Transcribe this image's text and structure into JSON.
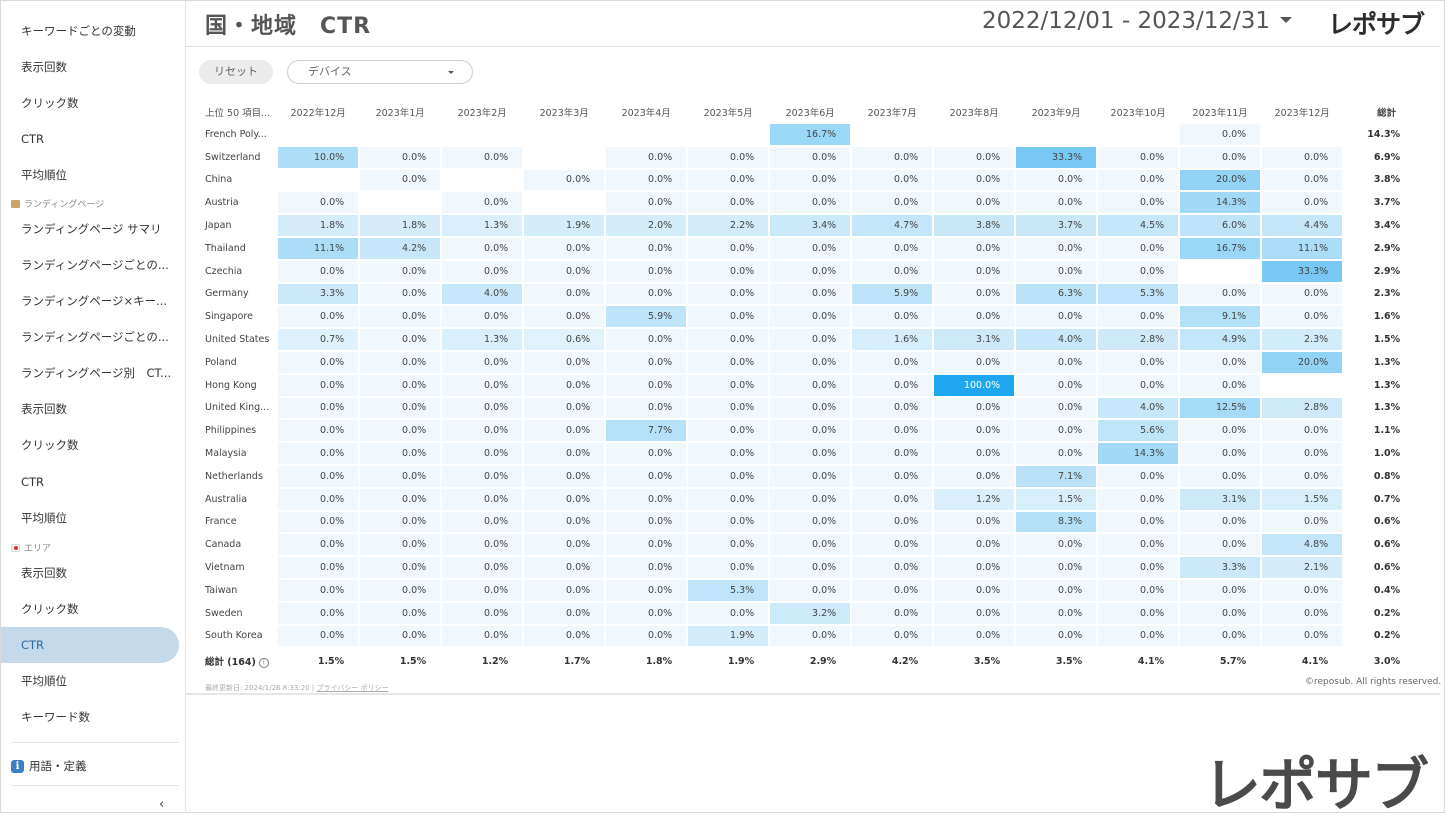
{
  "header": {
    "title": "国・地域　CTR",
    "date_range": "2022/12/01 - 2023/12/31",
    "logo": "レポサブ"
  },
  "sidebar": {
    "items_top": [
      {
        "label": "キーワードごとの変動"
      },
      {
        "label": "表示回数"
      },
      {
        "label": "クリック数"
      },
      {
        "label": "CTR"
      },
      {
        "label": "平均順位"
      }
    ],
    "section_landing": "ランディングページ",
    "items_landing": [
      {
        "label": "ランディングページ サマリ"
      },
      {
        "label": "ランディングページごとの..."
      },
      {
        "label": "ランディングページ×キー..."
      },
      {
        "label": "ランディングページごとの..."
      },
      {
        "label": "ランディングページ別　CT..."
      },
      {
        "label": "表示回数"
      },
      {
        "label": "クリック数"
      },
      {
        "label": "CTR"
      },
      {
        "label": "平均順位"
      }
    ],
    "section_area": "エリア",
    "items_area": [
      {
        "label": "表示回数"
      },
      {
        "label": "クリック数"
      },
      {
        "label": "CTR",
        "active": true
      },
      {
        "label": "平均順位"
      },
      {
        "label": "キーワード数"
      }
    ],
    "glossary": "用語・定義",
    "collapse_icon": "chevron-left-icon"
  },
  "controls": {
    "reset_label": "リセット",
    "device_placeholder": "デバイス"
  },
  "table": {
    "corner_header": "上位 50 項目...",
    "columns": [
      "2022年12月",
      "2023年1月",
      "2023年2月",
      "2023年3月",
      "2023年4月",
      "2023年5月",
      "2023年6月",
      "2023年7月",
      "2023年8月",
      "2023年9月",
      "2023年10月",
      "2023年11月",
      "2023年12月"
    ],
    "total_header": "総計",
    "rows": [
      {
        "name": "French Poly...",
        "cells": [
          "",
          "",
          "",
          "",
          "",
          "",
          "16.7%",
          "",
          "",
          "",
          "",
          "0.0%",
          ""
        ],
        "total": "14.3%"
      },
      {
        "name": "Switzerland",
        "cells": [
          "10.0%",
          "0.0%",
          "0.0%",
          "",
          "0.0%",
          "0.0%",
          "0.0%",
          "0.0%",
          "0.0%",
          "33.3%",
          "0.0%",
          "0.0%",
          "0.0%"
        ],
        "total": "6.9%"
      },
      {
        "name": "China",
        "cells": [
          "",
          "0.0%",
          "",
          "0.0%",
          "0.0%",
          "0.0%",
          "0.0%",
          "0.0%",
          "0.0%",
          "0.0%",
          "0.0%",
          "20.0%",
          "0.0%"
        ],
        "total": "3.8%"
      },
      {
        "name": "Austria",
        "cells": [
          "0.0%",
          "",
          "0.0%",
          "",
          "0.0%",
          "0.0%",
          "0.0%",
          "0.0%",
          "0.0%",
          "0.0%",
          "0.0%",
          "14.3%",
          "0.0%"
        ],
        "total": "3.7%"
      },
      {
        "name": "Japan",
        "cells": [
          "1.8%",
          "1.8%",
          "1.3%",
          "1.9%",
          "2.0%",
          "2.2%",
          "3.4%",
          "4.7%",
          "3.8%",
          "3.7%",
          "4.5%",
          "6.0%",
          "4.4%"
        ],
        "total": "3.4%"
      },
      {
        "name": "Thailand",
        "cells": [
          "11.1%",
          "4.2%",
          "0.0%",
          "0.0%",
          "0.0%",
          "0.0%",
          "0.0%",
          "0.0%",
          "0.0%",
          "0.0%",
          "0.0%",
          "16.7%",
          "11.1%"
        ],
        "total": "2.9%"
      },
      {
        "name": "Czechia",
        "cells": [
          "0.0%",
          "0.0%",
          "0.0%",
          "0.0%",
          "0.0%",
          "0.0%",
          "0.0%",
          "0.0%",
          "0.0%",
          "0.0%",
          "0.0%",
          "",
          "33.3%"
        ],
        "total": "2.9%"
      },
      {
        "name": "Germany",
        "cells": [
          "3.3%",
          "0.0%",
          "4.0%",
          "0.0%",
          "0.0%",
          "0.0%",
          "0.0%",
          "5.9%",
          "0.0%",
          "6.3%",
          "5.3%",
          "0.0%",
          "0.0%"
        ],
        "total": "2.3%"
      },
      {
        "name": "Singapore",
        "cells": [
          "0.0%",
          "0.0%",
          "0.0%",
          "0.0%",
          "5.9%",
          "0.0%",
          "0.0%",
          "0.0%",
          "0.0%",
          "0.0%",
          "0.0%",
          "9.1%",
          "0.0%"
        ],
        "total": "1.6%"
      },
      {
        "name": "United States",
        "cells": [
          "0.7%",
          "0.0%",
          "1.3%",
          "0.6%",
          "0.0%",
          "0.0%",
          "0.0%",
          "1.6%",
          "3.1%",
          "4.0%",
          "2.8%",
          "4.9%",
          "2.3%"
        ],
        "total": "1.5%"
      },
      {
        "name": "Poland",
        "cells": [
          "0.0%",
          "0.0%",
          "0.0%",
          "0.0%",
          "0.0%",
          "0.0%",
          "0.0%",
          "0.0%",
          "0.0%",
          "0.0%",
          "0.0%",
          "0.0%",
          "20.0%"
        ],
        "total": "1.3%"
      },
      {
        "name": "Hong Kong",
        "cells": [
          "0.0%",
          "0.0%",
          "0.0%",
          "0.0%",
          "0.0%",
          "0.0%",
          "0.0%",
          "0.0%",
          "100.0%",
          "0.0%",
          "0.0%",
          "0.0%",
          ""
        ],
        "total": "1.3%"
      },
      {
        "name": "United King...",
        "cells": [
          "0.0%",
          "0.0%",
          "0.0%",
          "0.0%",
          "0.0%",
          "0.0%",
          "0.0%",
          "0.0%",
          "0.0%",
          "0.0%",
          "4.0%",
          "12.5%",
          "2.8%"
        ],
        "total": "1.3%"
      },
      {
        "name": "Philippines",
        "cells": [
          "0.0%",
          "0.0%",
          "0.0%",
          "0.0%",
          "7.7%",
          "0.0%",
          "0.0%",
          "0.0%",
          "0.0%",
          "0.0%",
          "5.6%",
          "0.0%",
          "0.0%"
        ],
        "total": "1.1%"
      },
      {
        "name": "Malaysia",
        "cells": [
          "0.0%",
          "0.0%",
          "0.0%",
          "0.0%",
          "0.0%",
          "0.0%",
          "0.0%",
          "0.0%",
          "0.0%",
          "0.0%",
          "14.3%",
          "0.0%",
          "0.0%"
        ],
        "total": "1.0%"
      },
      {
        "name": "Netherlands",
        "cells": [
          "0.0%",
          "0.0%",
          "0.0%",
          "0.0%",
          "0.0%",
          "0.0%",
          "0.0%",
          "0.0%",
          "0.0%",
          "7.1%",
          "0.0%",
          "0.0%",
          "0.0%"
        ],
        "total": "0.8%"
      },
      {
        "name": "Australia",
        "cells": [
          "0.0%",
          "0.0%",
          "0.0%",
          "0.0%",
          "0.0%",
          "0.0%",
          "0.0%",
          "0.0%",
          "1.2%",
          "1.5%",
          "0.0%",
          "3.1%",
          "1.5%"
        ],
        "total": "0.7%"
      },
      {
        "name": "France",
        "cells": [
          "0.0%",
          "0.0%",
          "0.0%",
          "0.0%",
          "0.0%",
          "0.0%",
          "0.0%",
          "0.0%",
          "0.0%",
          "8.3%",
          "0.0%",
          "0.0%",
          "0.0%"
        ],
        "total": "0.6%"
      },
      {
        "name": "Canada",
        "cells": [
          "0.0%",
          "0.0%",
          "0.0%",
          "0.0%",
          "0.0%",
          "0.0%",
          "0.0%",
          "0.0%",
          "0.0%",
          "0.0%",
          "0.0%",
          "0.0%",
          "4.8%"
        ],
        "total": "0.6%"
      },
      {
        "name": "Vietnam",
        "cells": [
          "0.0%",
          "0.0%",
          "0.0%",
          "0.0%",
          "0.0%",
          "0.0%",
          "0.0%",
          "0.0%",
          "0.0%",
          "0.0%",
          "0.0%",
          "3.3%",
          "2.1%"
        ],
        "total": "0.6%"
      },
      {
        "name": "Taiwan",
        "cells": [
          "0.0%",
          "0.0%",
          "0.0%",
          "0.0%",
          "0.0%",
          "5.3%",
          "0.0%",
          "0.0%",
          "0.0%",
          "0.0%",
          "0.0%",
          "0.0%",
          "0.0%"
        ],
        "total": "0.4%"
      },
      {
        "name": "Sweden",
        "cells": [
          "0.0%",
          "0.0%",
          "0.0%",
          "0.0%",
          "0.0%",
          "0.0%",
          "3.2%",
          "0.0%",
          "0.0%",
          "0.0%",
          "0.0%",
          "0.0%",
          "0.0%"
        ],
        "total": "0.2%"
      },
      {
        "name": "South Korea",
        "cells": [
          "0.0%",
          "0.0%",
          "0.0%",
          "0.0%",
          "0.0%",
          "1.9%",
          "0.0%",
          "0.0%",
          "0.0%",
          "0.0%",
          "0.0%",
          "0.0%",
          "0.0%"
        ],
        "total": "0.2%"
      }
    ],
    "footer": {
      "name": "総計 (164)",
      "cells": [
        "1.5%",
        "1.5%",
        "1.2%",
        "1.7%",
        "1.8%",
        "1.9%",
        "2.9%",
        "4.2%",
        "3.5%",
        "3.5%",
        "4.1%",
        "5.7%",
        "4.1%"
      ],
      "total": "3.0%"
    },
    "heat_colors": {
      "base": "#f1f8fd",
      "max": "#1ea7ee",
      "text_on_dark": "#ffffff"
    }
  },
  "footer": {
    "updated": "最終更新日: 2024/1/26 8:33:20",
    "separator": "|",
    "privacy": "プライバシー ポリシー",
    "copyright": "©reposub. All rights reserved."
  },
  "big_logo": "レポサブ"
}
